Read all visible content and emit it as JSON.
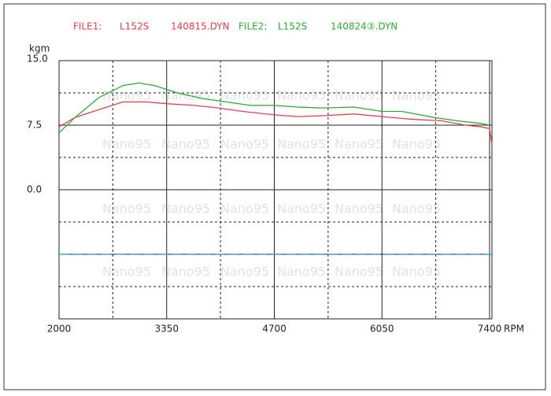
{
  "chart_data": {
    "type": "line",
    "y_unit": "kgm",
    "x_unit": "RPM",
    "watermark": "Nano95",
    "legend": [
      {
        "label": "FILE1:",
        "model": "L152S",
        "file": "140815.DYN",
        "color": "#e8404a"
      },
      {
        "label": "FILE2:",
        "model": "L152S",
        "file": "140824③.DYN",
        "color": "#2eaa3a"
      }
    ],
    "series": [
      {
        "color": "#e8404a",
        "x": [
          2000,
          2200,
          2500,
          2800,
          3100,
          3350,
          3700,
          4000,
          4300,
          4700,
          5000,
          5300,
          5700,
          6050,
          6400,
          6800,
          7100,
          7300,
          7400,
          7430
        ],
        "values": [
          7.3,
          8.4,
          9.3,
          10.2,
          10.2,
          10.0,
          9.8,
          9.5,
          9.1,
          8.7,
          8.5,
          8.6,
          8.8,
          8.5,
          8.2,
          8.0,
          7.5,
          7.3,
          7.1,
          5.2
        ]
      },
      {
        "color": "#2eaa3a",
        "x": [
          2000,
          2200,
          2500,
          2800,
          3000,
          3200,
          3500,
          3800,
          4100,
          4400,
          4700,
          5000,
          5300,
          5700,
          6050,
          6300,
          6700,
          7000,
          7300,
          7400
        ],
        "values": [
          6.6,
          8.4,
          10.7,
          12.1,
          12.4,
          12.1,
          11.2,
          10.6,
          10.2,
          9.8,
          9.8,
          9.6,
          9.5,
          9.6,
          9.1,
          9.1,
          8.4,
          8.0,
          7.7,
          7.5
        ]
      }
    ],
    "reference_line": {
      "value": -7.5,
      "color": "#4a9ad8"
    },
    "xlim": [
      2000,
      7430
    ],
    "xticks": [
      2000,
      3350,
      4700,
      6050,
      7400
    ],
    "minor_xgrid": [
      2675,
      4025,
      5375,
      6725
    ],
    "ylim": [
      -15,
      15
    ],
    "yticks": [
      {
        "value": 15,
        "label": "15.0"
      },
      7.5,
      {
        "value": 0,
        "label": "0.0"
      }
    ],
    "extra_ygrid": [
      -7.5,
      -15
    ],
    "minor_ygrid": [
      11.25,
      3.75,
      -3.75,
      -11.25
    ]
  }
}
